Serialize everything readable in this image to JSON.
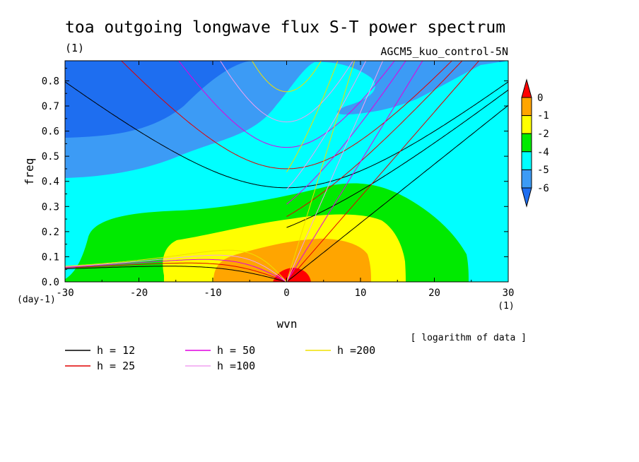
{
  "chart_data": {
    "type": "heatmap",
    "title": "toa outgoing longwave flux S-T power spectrum",
    "subtitle_left": "(1)",
    "subtitle_right": "AGCM5_kuo_control-5N",
    "xlabel": "wvn",
    "ylabel": "freq",
    "x_unit": "(1)",
    "y_unit": "(day-1)",
    "xlim": [
      -30,
      30
    ],
    "ylim": [
      0,
      0.88
    ],
    "x_ticks": [
      -30,
      -20,
      -10,
      0,
      10,
      20,
      30
    ],
    "x_tick_labels": [
      "-30",
      "-20",
      "-10",
      "0",
      "10",
      "20",
      "30"
    ],
    "y_ticks": [
      0.0,
      0.1,
      0.2,
      0.3,
      0.4,
      0.5,
      0.6,
      0.7,
      0.8
    ],
    "y_tick_labels": [
      "0.0",
      "0.1",
      "0.2",
      "0.3",
      "0.4",
      "0.5",
      "0.6",
      "0.7",
      "0.8"
    ],
    "note": "[ logarithm of data ]",
    "colorbar": {
      "levels": [
        -6,
        -5,
        -4,
        -2,
        -1,
        0
      ],
      "labels": [
        "0",
        "-1",
        "-2",
        "-4",
        "-5",
        "-6"
      ],
      "colors": [
        "#1e6ef0",
        "#3c9bf5",
        "#00ffff",
        "#00ea00",
        "#ffff00",
        "#ffa500",
        "#ff0000"
      ]
    },
    "dispersion_curves": [
      {
        "name": "h = 12",
        "equivalent_depth_m": 12,
        "color": "#000000"
      },
      {
        "name": "h = 25",
        "equivalent_depth_m": 25,
        "color": "#e00000"
      },
      {
        "name": "h = 50",
        "equivalent_depth_m": 50,
        "color": "#e000e0"
      },
      {
        "name": "h =100",
        "equivalent_depth_m": 100,
        "color": "#f0a0f0"
      },
      {
        "name": "h =200",
        "equivalent_depth_m": 200,
        "color": "#f0e000"
      }
    ]
  }
}
